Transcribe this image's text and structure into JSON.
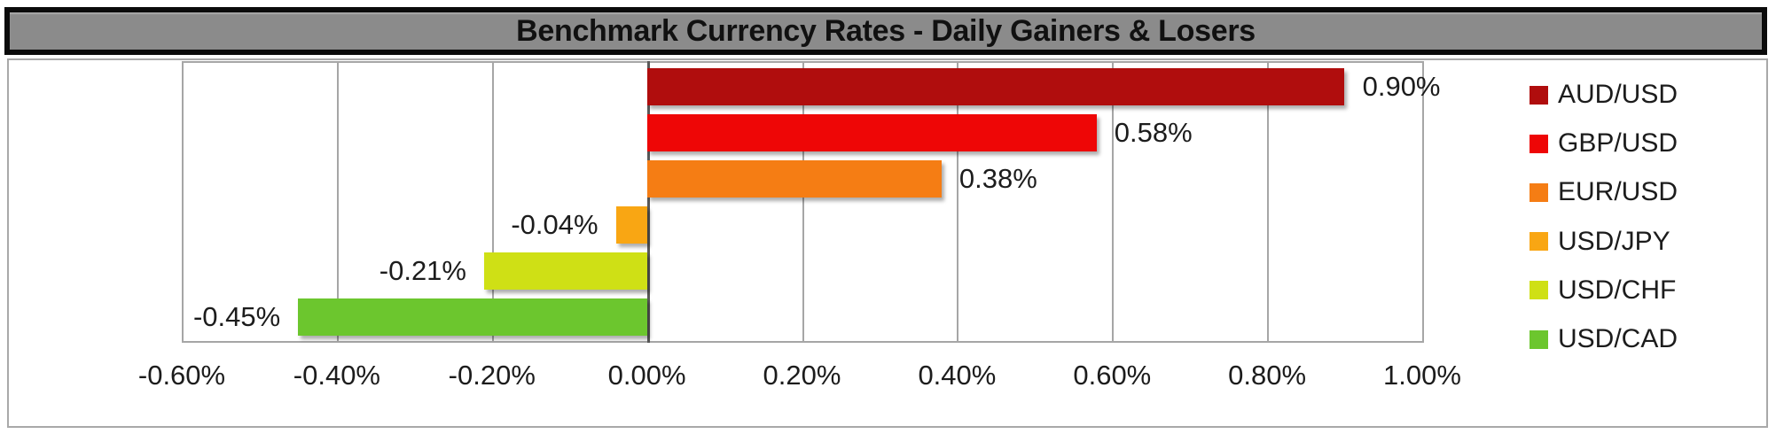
{
  "title": "Benchmark Currency Rates - Daily Gainers & Losers",
  "chart_data": {
    "type": "bar",
    "orientation": "horizontal",
    "title": "Benchmark Currency Rates - Daily Gainers & Losers",
    "categories": [
      "AUD/USD",
      "GBP/USD",
      "EUR/USD",
      "USD/JPY",
      "USD/CHF",
      "USD/CAD"
    ],
    "values": [
      0.9,
      0.58,
      0.38,
      -0.04,
      -0.21,
      -0.45
    ],
    "value_labels": [
      "0.90%",
      "0.58%",
      "0.38%",
      "-0.04%",
      "-0.21%",
      "-0.45%"
    ],
    "colors": [
      "#B00D0D",
      "#EE0606",
      "#F57D14",
      "#F9A613",
      "#CFE015",
      "#6CC62E"
    ],
    "x_ticks": [
      "-0.60%",
      "-0.40%",
      "-0.20%",
      "0.00%",
      "0.20%",
      "0.40%",
      "0.60%",
      "0.80%",
      "1.00%"
    ],
    "x_tick_values": [
      -0.6,
      -0.4,
      -0.2,
      0.0,
      0.2,
      0.4,
      0.6,
      0.8,
      1.0
    ],
    "xlim": [
      -0.6,
      1.0
    ],
    "grid": true,
    "legend_position": "right",
    "unit": "percent"
  },
  "styles": {
    "background": "#FFFFFF",
    "title_bg": "#8B8B8B",
    "title_text": "#111111",
    "title_border": "#0B0B0B",
    "frame_border": "#A9A9A9",
    "grid_color": "#A6A6A6",
    "zero_line_color": "#595959",
    "label_color": "#1C1C1C"
  }
}
